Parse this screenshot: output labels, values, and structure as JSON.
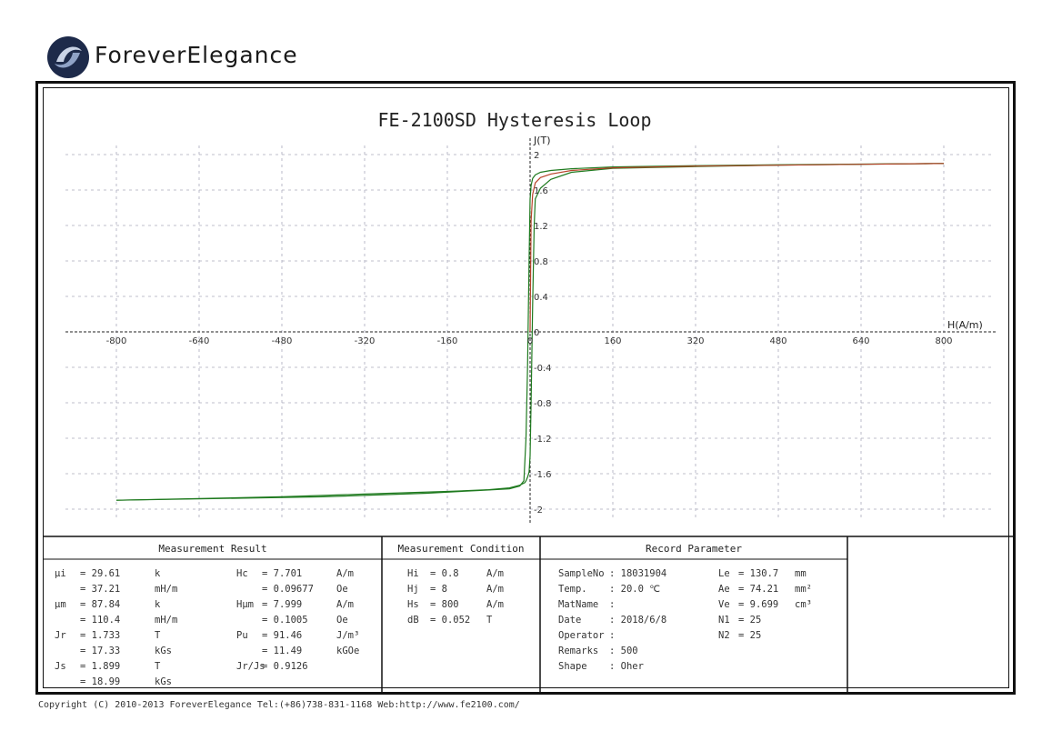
{
  "brand": {
    "name": "ForeverElegance"
  },
  "chart_data": {
    "type": "line",
    "title": "FE-2100SD Hysteresis Loop",
    "xlabel": "H(A/m)",
    "ylabel": "J(T)",
    "xlim": [
      -880,
      900
    ],
    "ylim": [
      -2.1,
      2.2
    ],
    "xticks": [
      "-800",
      "-640",
      "-480",
      "-320",
      "-160",
      "0",
      "160",
      "320",
      "480",
      "640",
      "800"
    ],
    "xtick_values": [
      -800,
      -640,
      -480,
      -320,
      -160,
      0,
      160,
      320,
      480,
      640,
      800
    ],
    "yticks": [
      "2",
      "1.6",
      "1.2",
      "0.8",
      "0.4",
      "0",
      "-0.4",
      "-0.8",
      "-1.2",
      "-1.6",
      "-2"
    ],
    "ytick_values": [
      2,
      1.6,
      1.2,
      0.8,
      0.4,
      0,
      -0.4,
      -0.8,
      -1.2,
      -1.6,
      -2
    ],
    "grid": true,
    "series": [
      {
        "color": "#1f7a1f",
        "x": [
          -800,
          -600,
          -400,
          -200,
          -100,
          -40,
          -20,
          -12,
          -8,
          -5,
          -2,
          0,
          2,
          5,
          10,
          20,
          40,
          80,
          160,
          320,
          480,
          640,
          800
        ],
        "y": [
          -1.899,
          -1.88,
          -1.86,
          -1.82,
          -1.79,
          -1.77,
          -1.74,
          -1.68,
          -1.2,
          -0.4,
          0.8,
          1.5,
          1.65,
          1.73,
          1.77,
          1.8,
          1.82,
          1.84,
          1.86,
          1.875,
          1.885,
          1.892,
          1.899
        ]
      },
      {
        "color": "#1f7a1f",
        "x": [
          800,
          640,
          480,
          320,
          160,
          80,
          40,
          20,
          10,
          8,
          5,
          2,
          0,
          -2,
          -5,
          -8,
          -10,
          -20,
          -40,
          -80,
          -160,
          -320,
          -480,
          -640,
          -800
        ],
        "y": [
          1.899,
          1.89,
          1.88,
          1.865,
          1.845,
          1.8,
          1.72,
          1.62,
          1.5,
          1.2,
          0.3,
          -0.8,
          -1.4,
          -1.58,
          -1.64,
          -1.68,
          -1.7,
          -1.73,
          -1.76,
          -1.78,
          -1.8,
          -1.83,
          -1.86,
          -1.88,
          -1.899
        ]
      },
      {
        "color": "#b8432a",
        "x": [
          0,
          2,
          5,
          10,
          20,
          40,
          80,
          160,
          320,
          480,
          640,
          800
        ],
        "y": [
          0,
          1.25,
          1.55,
          1.68,
          1.74,
          1.78,
          1.82,
          1.85,
          1.87,
          1.88,
          1.89,
          1.899
        ]
      }
    ]
  },
  "tables": {
    "measurement_result": {
      "header": "Measurement Result",
      "col1": [
        [
          "μi",
          "= 29.61",
          "k"
        ],
        [
          "",
          "= 37.21",
          "mH/m"
        ],
        [
          "μm",
          "= 87.84",
          "k"
        ],
        [
          "",
          "= 110.4",
          "mH/m"
        ],
        [
          "Jr",
          "= 1.733",
          "T"
        ],
        [
          "",
          "= 17.33",
          "kGs"
        ],
        [
          "Js",
          "= 1.899",
          "T"
        ],
        [
          "",
          "= 18.99",
          "kGs"
        ]
      ],
      "col2": [
        [
          "Hc",
          "= 7.701",
          "A/m"
        ],
        [
          "",
          "= 0.09677",
          "Oe"
        ],
        [
          "Hμm",
          "= 7.999",
          "A/m"
        ],
        [
          "",
          "= 0.1005",
          "Oe"
        ],
        [
          "Pu",
          "= 91.46",
          "J/m³"
        ],
        [
          "",
          "= 11.49",
          "kGOe"
        ],
        [
          "Jr/Js",
          "= 0.9126",
          ""
        ]
      ]
    },
    "measurement_condition": {
      "header": "Measurement Condition",
      "rows": [
        [
          "Hi",
          "= 0.8",
          "A/m"
        ],
        [
          "Hj",
          "= 8",
          "A/m"
        ],
        [
          "Hs",
          "= 800",
          "A/m"
        ],
        [
          "dB",
          "= 0.052",
          "T"
        ]
      ]
    },
    "record_parameter": {
      "header": "Record Parameter",
      "col1": [
        [
          "SampleNo",
          ": 18031904"
        ],
        [
          "Temp.",
          ": 20.0 ℃"
        ],
        [
          "MatName",
          ":"
        ],
        [
          "Date",
          ": 2018/6/8"
        ],
        [
          "Operator",
          ":"
        ],
        [
          "Remarks",
          ": 500"
        ],
        [
          "Shape",
          ": Oher"
        ]
      ],
      "col2": [
        [
          "Le",
          "= 130.7",
          "mm"
        ],
        [
          "Ae",
          "= 74.21",
          "mm²"
        ],
        [
          "Ve",
          "= 9.699",
          "cm³"
        ],
        [
          "N1",
          "= 25",
          ""
        ],
        [
          "N2",
          "= 25",
          ""
        ]
      ]
    }
  },
  "footer": {
    "copyright": "Copyright (C) 2010-2013 ForeverElegance  Tel:(+86)738-831-1168  Web:http://www.fe2100.com/"
  }
}
